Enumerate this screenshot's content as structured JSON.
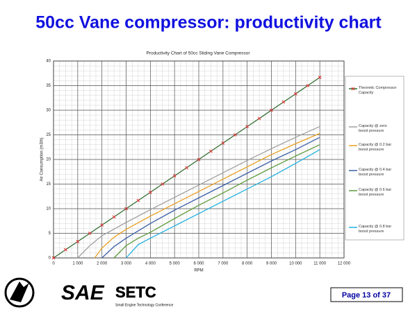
{
  "slide": {
    "title": "50cc Vane compressor: productivity chart",
    "logos": {
      "sae": "SAE",
      "setc": "SETC",
      "setc_caption": "Small Engine Technology Conference"
    },
    "page": "Page 13 of 37"
  },
  "chart_data": {
    "type": "line",
    "title": "Productivity Chart of 50cc Sliding Vane Compressor",
    "x_label": "RPM",
    "y_label": "Air Consumption (m3/h)",
    "xlim": [
      0,
      12000
    ],
    "xticks": [
      0,
      {
        "value": 1000,
        "label": "1 000"
      },
      {
        "value": 2000,
        "label": "2 000"
      },
      {
        "value": 3000,
        "label": "3 000"
      },
      {
        "value": 4000,
        "label": "4 000"
      },
      {
        "value": 5000,
        "label": "5 000"
      },
      {
        "value": 6000,
        "label": "6 000"
      },
      {
        "value": 7000,
        "label": "7 000"
      },
      {
        "value": 8000,
        "label": "8 000"
      },
      {
        "value": 9000,
        "label": "9 000"
      },
      {
        "value": 10000,
        "label": "10 000"
      },
      {
        "value": 11000,
        "label": "11 000"
      },
      {
        "value": 12000,
        "label": "12 000"
      }
    ],
    "ylim": [
      0,
      40
    ],
    "yticks": [
      0,
      5,
      10,
      15,
      20,
      25,
      30,
      35,
      40
    ],
    "grid": true,
    "legend": "right",
    "series": [
      {
        "name": "Theoretic Compressor Capacity",
        "color": "#2e6b2e",
        "marker_color": "#e03030",
        "x": [
          0,
          500,
          1000,
          1500,
          2000,
          2500,
          3000,
          3500,
          4000,
          4500,
          5000,
          5500,
          6000,
          6500,
          7000,
          7500,
          8000,
          8500,
          9000,
          9500,
          10000,
          10500,
          11000
        ],
        "values": [
          0,
          1.67,
          3.33,
          5,
          6.67,
          8.33,
          10,
          11.67,
          13.33,
          15,
          16.67,
          18.33,
          20,
          21.67,
          23.33,
          25,
          26.67,
          28.33,
          30,
          31.67,
          33.33,
          35,
          36.67
        ]
      },
      {
        "name": "Capacity @ zero boost pressure",
        "color": "#a0a0a0",
        "x": [
          1000,
          1500,
          2000,
          3000,
          4000,
          5000,
          6000,
          7000,
          8000,
          9000,
          10000,
          11000
        ],
        "values": [
          0,
          2.5,
          4.5,
          7.2,
          9.8,
          12.3,
          14.8,
          17.3,
          19.8,
          22.2,
          24.5,
          26.7
        ]
      },
      {
        "name": "Capacity @ 0.2 bar boost pressure",
        "color": "#e8a020",
        "x": [
          1700,
          2000,
          2500,
          3000,
          4000,
          5000,
          6000,
          7000,
          8000,
          9000,
          10000,
          11000
        ],
        "values": [
          0,
          2,
          4.2,
          5.8,
          8.5,
          11,
          13.5,
          16,
          18.5,
          21,
          23.2,
          25.3
        ]
      },
      {
        "name": "Capacity @ 0.4 bar boost pressure",
        "color": "#3a5fa8",
        "x": [
          2000,
          2500,
          3000,
          4000,
          5000,
          6000,
          7000,
          8000,
          9000,
          10000,
          11000
        ],
        "values": [
          0,
          2.3,
          4,
          7,
          9.7,
          12.2,
          14.7,
          17.2,
          19.7,
          22,
          24.5
        ]
      },
      {
        "name": "Capacity @ 0.6 bar boost pressure",
        "color": "#5a9a3a",
        "x": [
          2500,
          3000,
          3500,
          4000,
          5000,
          6000,
          7000,
          8000,
          9000,
          10000,
          11000
        ],
        "values": [
          0,
          2.5,
          4,
          5.2,
          8,
          10.7,
          13.2,
          15.8,
          18.3,
          20.7,
          23
        ]
      },
      {
        "name": "Capacity @ 0.8 bar boost pressure",
        "color": "#20b0e0",
        "x": [
          3000,
          3500,
          4000,
          5000,
          6000,
          7000,
          8000,
          9000,
          10000,
          11000
        ],
        "values": [
          0,
          2.7,
          4,
          6.5,
          9,
          11.5,
          14,
          16.5,
          19.2,
          22
        ]
      }
    ]
  }
}
